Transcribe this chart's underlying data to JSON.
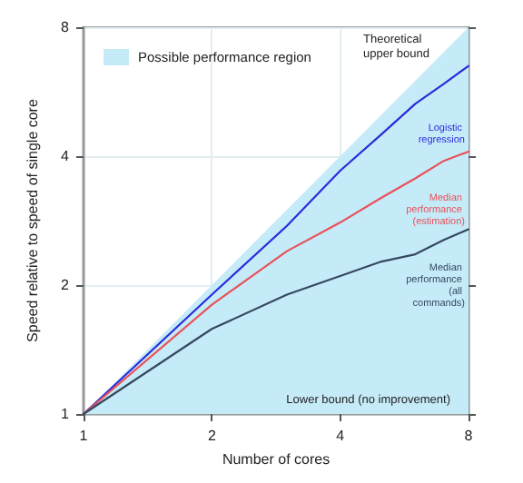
{
  "chart_data": {
    "type": "line",
    "xlabel": "Number of cores",
    "ylabel": "Speed relative to speed of single core",
    "log": "xy",
    "xlim": [
      1,
      8
    ],
    "ylim": [
      1,
      8
    ],
    "xticks": [
      1,
      2,
      4,
      8
    ],
    "yticks": [
      1,
      2,
      4,
      8
    ],
    "grid": true,
    "legend": "top left",
    "marker": "none",
    "line_style": "solid",
    "x": [
      1,
      2,
      3,
      4,
      5,
      6,
      7,
      8
    ],
    "series": [
      {
        "type": "area",
        "name": "Possible performance region",
        "color": "#c6ebf8",
        "values": [
          1,
          2,
          3,
          4,
          5,
          6,
          7,
          8
        ]
      },
      {
        "name": "Logistic regression",
        "color": "#2b2bdc",
        "values": [
          1,
          1.9,
          2.75,
          3.7,
          4.5,
          5.3,
          5.9,
          6.5
        ]
      },
      {
        "name": "Median performance (estimation)",
        "color": "#e8525a",
        "values": [
          1,
          1.8,
          2.4,
          2.8,
          3.2,
          3.55,
          3.9,
          4.1
        ]
      },
      {
        "name": "Median performance (all commands)",
        "color": "#34495e",
        "values": [
          1,
          1.58,
          1.9,
          2.1,
          2.27,
          2.36,
          2.55,
          2.7
        ]
      }
    ],
    "annotations": [
      "Theoretical upper bound",
      "Lower bound (no improvement)"
    ]
  }
}
